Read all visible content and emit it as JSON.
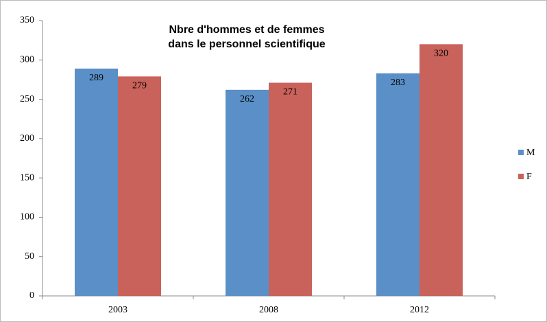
{
  "chart_data": {
    "type": "bar",
    "title": [
      "Nbre d'hommes et de femmes",
      "dans le personnel scientifique"
    ],
    "categories": [
      "2003",
      "2008",
      "2012"
    ],
    "series": [
      {
        "name": "M",
        "color": "#5b8fc7",
        "values": [
          289,
          262,
          283
        ]
      },
      {
        "name": "F",
        "color": "#c9625a",
        "values": [
          279,
          271,
          320
        ]
      }
    ],
    "ylim": [
      0,
      350
    ],
    "yticks": [
      0,
      50,
      100,
      150,
      200,
      250,
      300,
      350
    ],
    "legend": "right"
  }
}
